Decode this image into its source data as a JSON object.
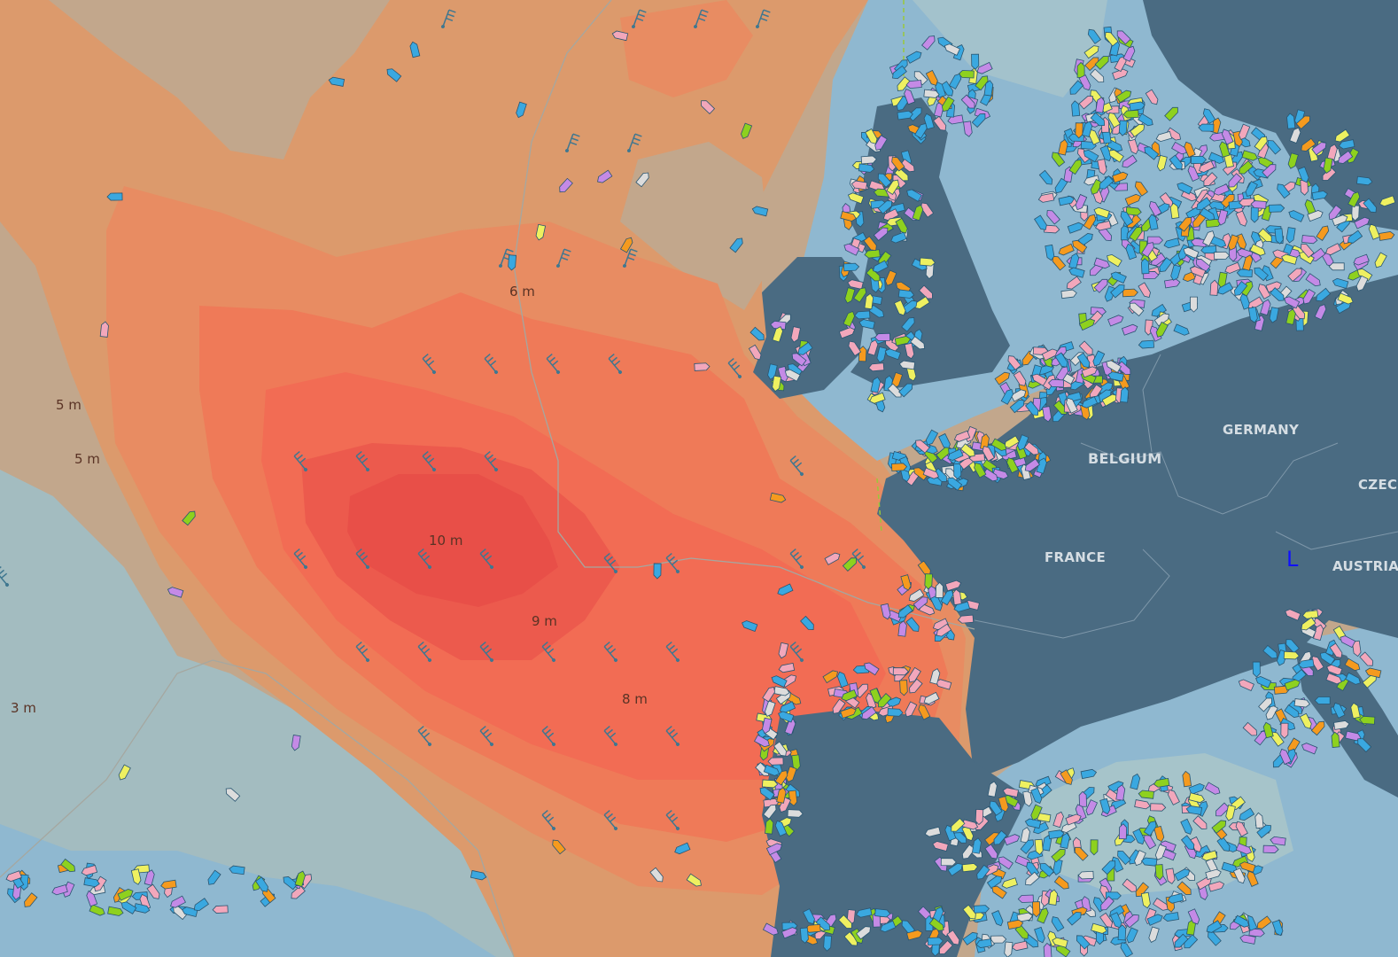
{
  "map": {
    "layer": "wave height",
    "wave_labels": [
      "10 m",
      "9 m",
      "8 m",
      "6 m",
      "5 m",
      "5 m",
      "3 m"
    ],
    "countries": [
      "GERMANY",
      "BELGIUM",
      "FRANCE",
      "CZEC",
      "AUSTRIA"
    ],
    "marker_glyph": "L",
    "colors": {
      "band_4m": "#c2a78c",
      "band_5m": "#dc9a6c",
      "band_6m": "#e88c62",
      "band_7m": "#ef7a58",
      "band_8m": "#f26c54",
      "band_9m": "#ec5a4d",
      "band_10m": "#e84f48",
      "band_3m": "#a3bcc0",
      "sea_shallow": "#8fb8d0",
      "land": "#4a6b82",
      "wind_barb": "#3f7790"
    },
    "ship_colors": {
      "cargo": "#3aa8e0",
      "passenger": "#f2a7bb",
      "tanker_green": "#8ed11e",
      "pleasure": "#c48ae6",
      "unknown": "#dcdcdc",
      "yellow": "#eef060",
      "orange": "#f59a1e"
    },
    "icons": [
      "ship-icon",
      "wind-barb-icon"
    ]
  }
}
